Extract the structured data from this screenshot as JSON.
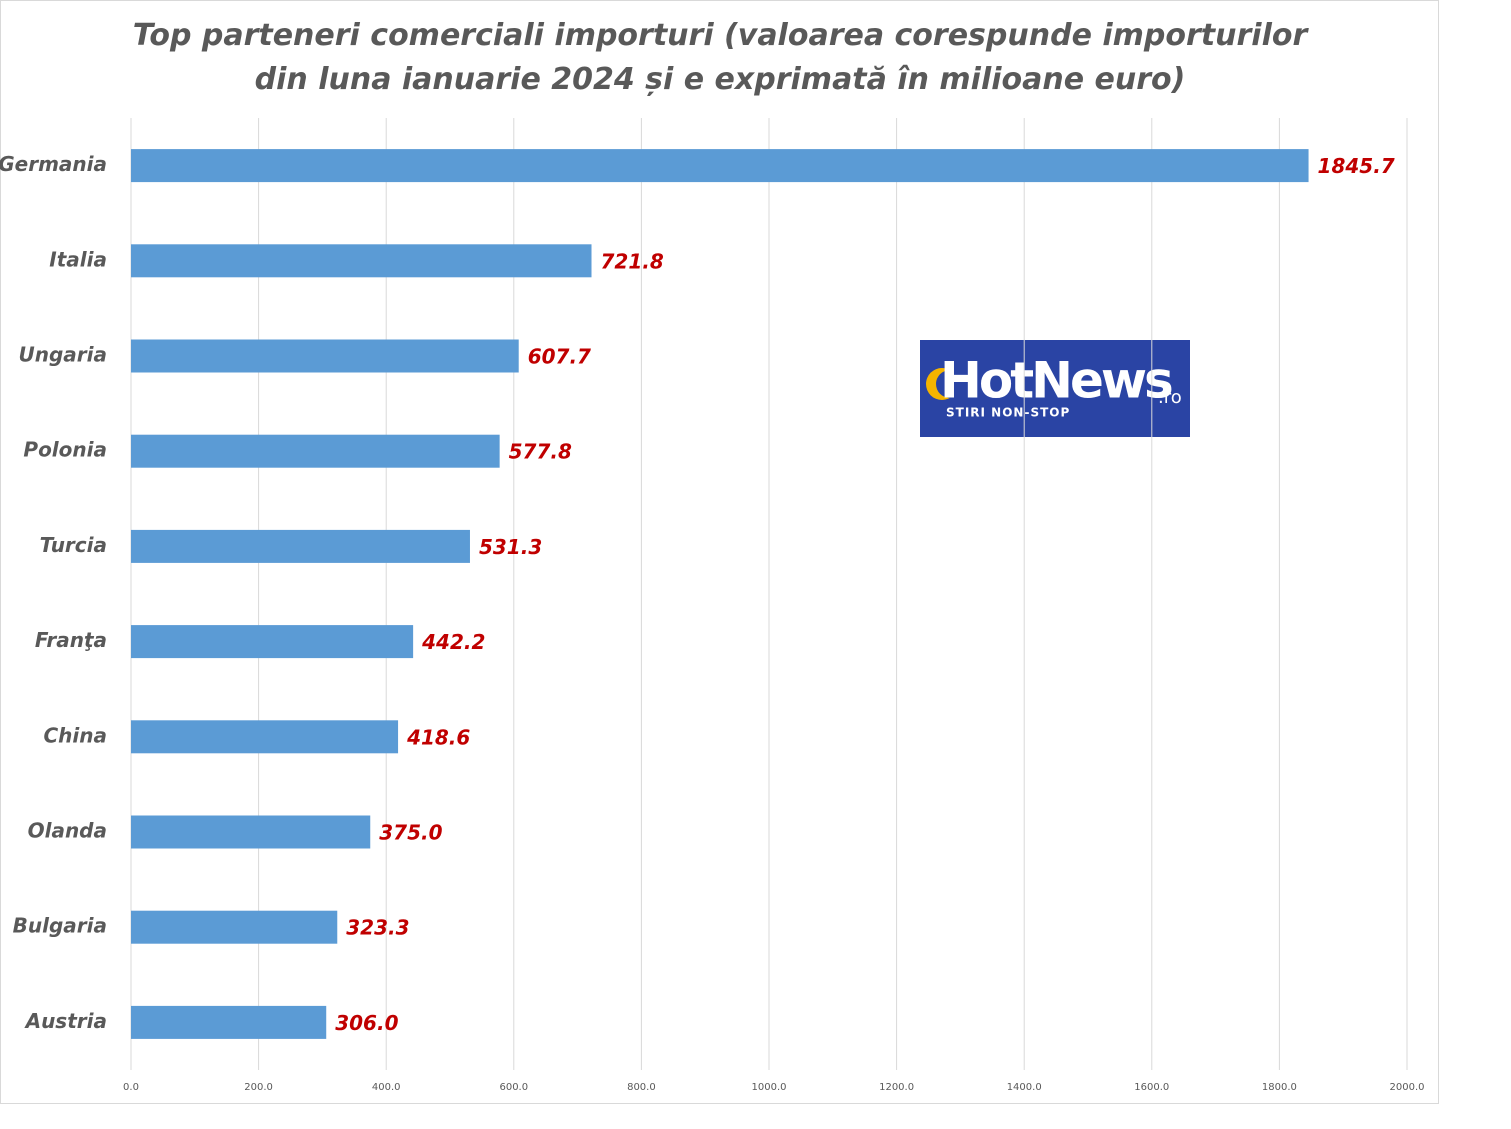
{
  "chart_data": {
    "type": "bar",
    "orientation": "horizontal",
    "title": "Top parteneri comerciali importuri (valoarea corespunde importurilor din luna ianuarie 2024 și e exprimată în milioane euro)",
    "categories": [
      "Germania",
      "Italia",
      "Ungaria",
      "Polonia",
      "Turcia",
      "Franţa",
      "China",
      "Olanda",
      "Bulgaria",
      "Austria"
    ],
    "values": [
      1845.7,
      721.8,
      607.7,
      577.8,
      531.3,
      442.2,
      418.6,
      375.0,
      323.3,
      306.0
    ],
    "value_labels": [
      "1845.7",
      "721.8",
      "607.7",
      "577.8",
      "531.3",
      "442.2",
      "418.6",
      "375.0",
      "323.3",
      "306.0"
    ],
    "color": "#5b9bd5",
    "label_color": "#c00000",
    "xlim": [
      0,
      2000
    ],
    "xticks": [
      {
        "value": 0,
        "label": "0.0"
      },
      {
        "value": 200,
        "label": "200.0"
      },
      {
        "value": 400,
        "label": "400.0"
      },
      {
        "value": 600,
        "label": "600.0"
      },
      {
        "value": 800,
        "label": "800.0"
      },
      {
        "value": 1000,
        "label": "1000.0"
      },
      {
        "value": 1200,
        "label": "1200.0"
      },
      {
        "value": 1400,
        "label": "1400.0"
      },
      {
        "value": 1600,
        "label": "1600.0"
      },
      {
        "value": 1800,
        "label": "1800.0"
      },
      {
        "value": 2000,
        "label": "2000.0"
      }
    ],
    "grid": true
  },
  "logo": {
    "name": "HotNews",
    "suffix": ".ro",
    "tagline": "STIRI NON-STOP"
  }
}
